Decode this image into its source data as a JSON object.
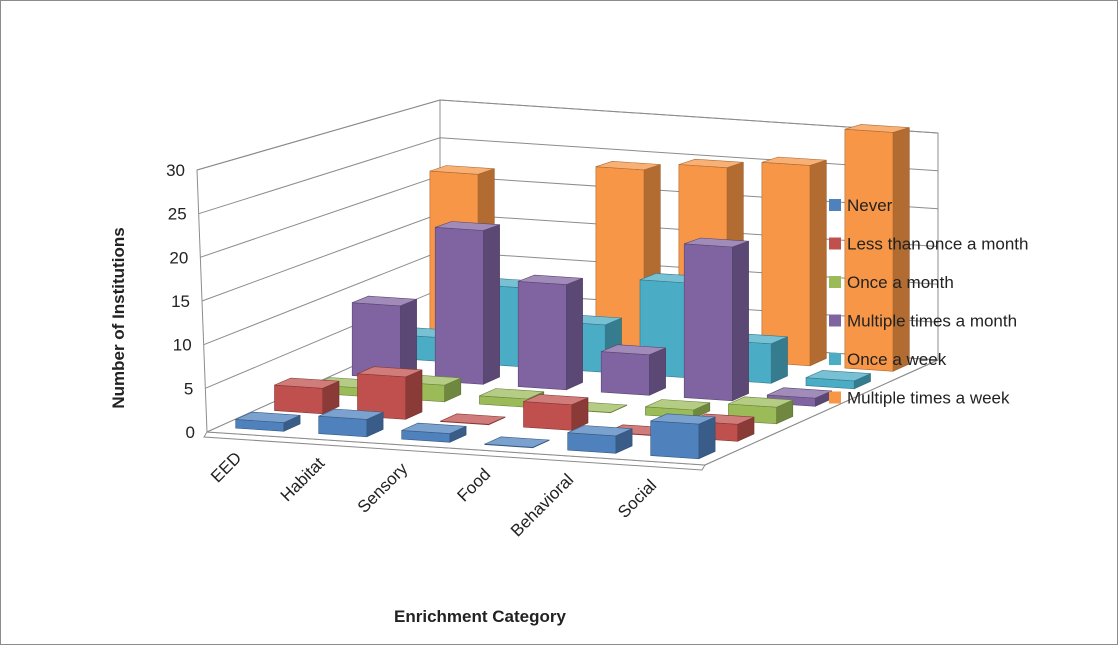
{
  "chart_data": {
    "type": "bar",
    "variant": "3d-clustered-depth",
    "title": "",
    "xlabel": "Enrichment Category",
    "ylabel": "Number of Institutions",
    "ylim": [
      0,
      30
    ],
    "yticks": [
      "0",
      "5",
      "10",
      "15",
      "20",
      "25",
      "30"
    ],
    "grid": true,
    "legend_position": "right",
    "categories": [
      "EED",
      "Habitat",
      "Sensory",
      "Food",
      "Behavioral",
      "Social"
    ],
    "series": [
      {
        "name": "Never",
        "color": "#4F81BD",
        "values": [
          1,
          2,
          1,
          0,
          2,
          4
        ]
      },
      {
        "name": "Less than once a month",
        "color": "#C0504D",
        "values": [
          3,
          5,
          0,
          3,
          0,
          2
        ]
      },
      {
        "name": "Once a month",
        "color": "#9BBB59",
        "values": [
          1,
          2,
          1,
          0,
          1,
          2
        ]
      },
      {
        "name": "Multiple times a month",
        "color": "#8064A2",
        "values": [
          9,
          19,
          13,
          5,
          19,
          1
        ]
      },
      {
        "name": "Once a week",
        "color": "#4BACC6",
        "values": [
          3,
          10,
          6,
          12,
          5,
          1
        ]
      },
      {
        "name": "Multiple times a week",
        "color": "#F79646",
        "values": [
          22,
          7,
          24,
          25,
          26,
          31
        ]
      }
    ]
  }
}
